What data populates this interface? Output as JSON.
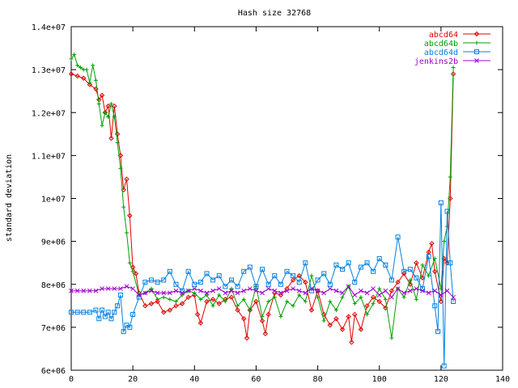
{
  "chart_data": {
    "type": "line",
    "title": "Hash size 32768",
    "xlabel": "",
    "ylabel": "standard deviation",
    "xlim": [
      0,
      140
    ],
    "ylim": [
      6000000,
      14000000
    ],
    "x_ticks": [
      0,
      20,
      40,
      60,
      80,
      100,
      120,
      140
    ],
    "x_tick_labels": [
      "0",
      "20",
      "40",
      "60",
      "80",
      "100",
      "120",
      "140"
    ],
    "y_ticks": [
      6000000,
      7000000,
      8000000,
      9000000,
      10000000,
      11000000,
      12000000,
      13000000,
      14000000
    ],
    "y_tick_labels": [
      "6e+06",
      "7e+06",
      "8e+06",
      "9e+06",
      "1e+07",
      "1.1e+07",
      "1.2e+07",
      "1.3e+07",
      "1.4e+07"
    ],
    "legend_position": "top-right",
    "grid": false,
    "series": [
      {
        "name": "abcd64",
        "color": "#e00000",
        "marker": "diamond",
        "points": [
          [
            0,
            12900000
          ],
          [
            2,
            12850000
          ],
          [
            4,
            12800000
          ],
          [
            6,
            12650000
          ],
          [
            8,
            12550000
          ],
          [
            9,
            12300000
          ],
          [
            10,
            12400000
          ],
          [
            11,
            12000000
          ],
          [
            12,
            12150000
          ],
          [
            13,
            11400000
          ],
          [
            14,
            12150000
          ],
          [
            15,
            11500000
          ],
          [
            16,
            11000000
          ],
          [
            17,
            10200000
          ],
          [
            18,
            10450000
          ],
          [
            19,
            9600000
          ],
          [
            20,
            8400000
          ],
          [
            21,
            8250000
          ],
          [
            22,
            7800000
          ],
          [
            24,
            7500000
          ],
          [
            26,
            7550000
          ],
          [
            28,
            7600000
          ],
          [
            30,
            7350000
          ],
          [
            32,
            7400000
          ],
          [
            34,
            7500000
          ],
          [
            36,
            7550000
          ],
          [
            38,
            7700000
          ],
          [
            40,
            7750000
          ],
          [
            41,
            7300000
          ],
          [
            42,
            7100000
          ],
          [
            44,
            7600000
          ],
          [
            46,
            7650000
          ],
          [
            48,
            7550000
          ],
          [
            50,
            7650000
          ],
          [
            52,
            7700000
          ],
          [
            54,
            7400000
          ],
          [
            56,
            7200000
          ],
          [
            57,
            6750000
          ],
          [
            58,
            7400000
          ],
          [
            60,
            7600000
          ],
          [
            62,
            7150000
          ],
          [
            63,
            6850000
          ],
          [
            64,
            7300000
          ],
          [
            66,
            7800000
          ],
          [
            68,
            7750000
          ],
          [
            70,
            7900000
          ],
          [
            72,
            8100000
          ],
          [
            74,
            8200000
          ],
          [
            76,
            8050000
          ],
          [
            78,
            7400000
          ],
          [
            80,
            7850000
          ],
          [
            82,
            7300000
          ],
          [
            84,
            7050000
          ],
          [
            86,
            7200000
          ],
          [
            88,
            6950000
          ],
          [
            90,
            7250000
          ],
          [
            91,
            6650000
          ],
          [
            92,
            7300000
          ],
          [
            94,
            6950000
          ],
          [
            96,
            7500000
          ],
          [
            98,
            7700000
          ],
          [
            100,
            7600000
          ],
          [
            102,
            7450000
          ],
          [
            104,
            7850000
          ],
          [
            106,
            8050000
          ],
          [
            108,
            8250000
          ],
          [
            110,
            8000000
          ],
          [
            112,
            8500000
          ],
          [
            114,
            8150000
          ],
          [
            116,
            8750000
          ],
          [
            117,
            8950000
          ],
          [
            118,
            8300000
          ],
          [
            120,
            7600000
          ],
          [
            121,
            8600000
          ],
          [
            122,
            8500000
          ],
          [
            123,
            10000000
          ],
          [
            124,
            12900000
          ]
        ]
      },
      {
        "name": "abcd64b",
        "color": "#00a000",
        "marker": "plus",
        "points": [
          [
            0,
            13250000
          ],
          [
            1,
            13350000
          ],
          [
            2,
            13100000
          ],
          [
            3,
            13050000
          ],
          [
            4,
            13000000
          ],
          [
            5,
            13000000
          ],
          [
            6,
            12700000
          ],
          [
            7,
            13100000
          ],
          [
            8,
            12750000
          ],
          [
            9,
            12200000
          ],
          [
            10,
            11700000
          ],
          [
            11,
            12000000
          ],
          [
            12,
            11900000
          ],
          [
            13,
            12200000
          ],
          [
            14,
            11900000
          ],
          [
            15,
            11300000
          ],
          [
            16,
            10700000
          ],
          [
            17,
            9800000
          ],
          [
            18,
            9200000
          ],
          [
            19,
            8500000
          ],
          [
            20,
            8300000
          ],
          [
            22,
            7750000
          ],
          [
            24,
            7800000
          ],
          [
            26,
            7900000
          ],
          [
            28,
            7650000
          ],
          [
            30,
            7700000
          ],
          [
            32,
            7650000
          ],
          [
            34,
            7600000
          ],
          [
            36,
            7750000
          ],
          [
            38,
            7850000
          ],
          [
            40,
            7800000
          ],
          [
            42,
            7650000
          ],
          [
            44,
            7750000
          ],
          [
            46,
            7500000
          ],
          [
            48,
            7750000
          ],
          [
            50,
            7600000
          ],
          [
            52,
            7900000
          ],
          [
            54,
            7500000
          ],
          [
            56,
            7650000
          ],
          [
            58,
            7400000
          ],
          [
            60,
            7950000
          ],
          [
            62,
            7250000
          ],
          [
            64,
            7600000
          ],
          [
            66,
            7700000
          ],
          [
            68,
            7250000
          ],
          [
            70,
            7600000
          ],
          [
            72,
            7500000
          ],
          [
            74,
            7750000
          ],
          [
            76,
            7600000
          ],
          [
            78,
            8200000
          ],
          [
            80,
            7700000
          ],
          [
            82,
            7150000
          ],
          [
            84,
            7600000
          ],
          [
            86,
            7400000
          ],
          [
            88,
            7700000
          ],
          [
            90,
            7950000
          ],
          [
            92,
            7550000
          ],
          [
            94,
            7700000
          ],
          [
            96,
            7300000
          ],
          [
            98,
            7550000
          ],
          [
            100,
            7900000
          ],
          [
            102,
            7650000
          ],
          [
            104,
            6750000
          ],
          [
            106,
            7900000
          ],
          [
            108,
            7700000
          ],
          [
            110,
            8100000
          ],
          [
            112,
            7650000
          ],
          [
            114,
            8450000
          ],
          [
            116,
            8200000
          ],
          [
            118,
            8600000
          ],
          [
            120,
            7900000
          ],
          [
            121,
            9000000
          ],
          [
            122,
            9350000
          ],
          [
            123,
            10500000
          ],
          [
            124,
            13050000
          ]
        ]
      },
      {
        "name": "abcd64d",
        "color": "#0080e0",
        "marker": "square",
        "points": [
          [
            0,
            7350000
          ],
          [
            2,
            7350000
          ],
          [
            4,
            7350000
          ],
          [
            6,
            7350000
          ],
          [
            8,
            7400000
          ],
          [
            9,
            7200000
          ],
          [
            10,
            7400000
          ],
          [
            11,
            7250000
          ],
          [
            12,
            7350000
          ],
          [
            13,
            7200000
          ],
          [
            14,
            7350000
          ],
          [
            15,
            7500000
          ],
          [
            16,
            7750000
          ],
          [
            17,
            6900000
          ],
          [
            18,
            7050000
          ],
          [
            19,
            7000000
          ],
          [
            20,
            7300000
          ],
          [
            22,
            7700000
          ],
          [
            24,
            8050000
          ],
          [
            26,
            8100000
          ],
          [
            28,
            8050000
          ],
          [
            30,
            8100000
          ],
          [
            32,
            8300000
          ],
          [
            34,
            8000000
          ],
          [
            36,
            7850000
          ],
          [
            38,
            8300000
          ],
          [
            40,
            8000000
          ],
          [
            42,
            8050000
          ],
          [
            44,
            8250000
          ],
          [
            46,
            8100000
          ],
          [
            48,
            8200000
          ],
          [
            50,
            7950000
          ],
          [
            52,
            8100000
          ],
          [
            54,
            7950000
          ],
          [
            56,
            8300000
          ],
          [
            58,
            8400000
          ],
          [
            60,
            7950000
          ],
          [
            62,
            8350000
          ],
          [
            64,
            8000000
          ],
          [
            66,
            8200000
          ],
          [
            68,
            8000000
          ],
          [
            70,
            8300000
          ],
          [
            72,
            8200000
          ],
          [
            74,
            8050000
          ],
          [
            76,
            8500000
          ],
          [
            78,
            7850000
          ],
          [
            80,
            8100000
          ],
          [
            82,
            8250000
          ],
          [
            84,
            8000000
          ],
          [
            86,
            8450000
          ],
          [
            88,
            8350000
          ],
          [
            90,
            8500000
          ],
          [
            92,
            8050000
          ],
          [
            94,
            8400000
          ],
          [
            96,
            8500000
          ],
          [
            98,
            8300000
          ],
          [
            100,
            8600000
          ],
          [
            102,
            8450000
          ],
          [
            104,
            8100000
          ],
          [
            106,
            9100000
          ],
          [
            108,
            8300000
          ],
          [
            110,
            8350000
          ],
          [
            112,
            8150000
          ],
          [
            114,
            7900000
          ],
          [
            116,
            8650000
          ],
          [
            118,
            7500000
          ],
          [
            119,
            6900000
          ],
          [
            120,
            9900000
          ],
          [
            121,
            6100000
          ],
          [
            122,
            9700000
          ],
          [
            123,
            8500000
          ],
          [
            124,
            7600000
          ]
        ]
      },
      {
        "name": "jenkins2b",
        "color": "#a000d0",
        "marker": "cross",
        "points": [
          [
            0,
            7850000
          ],
          [
            2,
            7850000
          ],
          [
            4,
            7850000
          ],
          [
            6,
            7850000
          ],
          [
            8,
            7850000
          ],
          [
            10,
            7900000
          ],
          [
            12,
            7900000
          ],
          [
            14,
            7900000
          ],
          [
            16,
            7900000
          ],
          [
            18,
            7950000
          ],
          [
            20,
            7900000
          ],
          [
            22,
            7750000
          ],
          [
            24,
            7800000
          ],
          [
            26,
            7850000
          ],
          [
            28,
            7800000
          ],
          [
            30,
            7800000
          ],
          [
            32,
            7800000
          ],
          [
            34,
            7850000
          ],
          [
            36,
            7800000
          ],
          [
            38,
            7850000
          ],
          [
            40,
            7900000
          ],
          [
            42,
            7850000
          ],
          [
            44,
            7800000
          ],
          [
            46,
            7850000
          ],
          [
            48,
            7900000
          ],
          [
            50,
            7800000
          ],
          [
            52,
            7850000
          ],
          [
            54,
            7800000
          ],
          [
            56,
            7850000
          ],
          [
            58,
            7900000
          ],
          [
            60,
            7850000
          ],
          [
            62,
            7800000
          ],
          [
            64,
            7900000
          ],
          [
            66,
            7850000
          ],
          [
            68,
            7800000
          ],
          [
            70,
            7850000
          ],
          [
            72,
            7900000
          ],
          [
            74,
            7850000
          ],
          [
            76,
            7800000
          ],
          [
            78,
            7900000
          ],
          [
            80,
            7850000
          ],
          [
            82,
            7800000
          ],
          [
            84,
            7900000
          ],
          [
            86,
            7850000
          ],
          [
            88,
            7800000
          ],
          [
            90,
            7950000
          ],
          [
            92,
            7750000
          ],
          [
            94,
            7850000
          ],
          [
            96,
            7800000
          ],
          [
            98,
            7900000
          ],
          [
            100,
            7750000
          ],
          [
            102,
            7850000
          ],
          [
            104,
            7700000
          ],
          [
            106,
            7900000
          ],
          [
            108,
            7800000
          ],
          [
            110,
            7850000
          ],
          [
            112,
            7900000
          ],
          [
            114,
            7850000
          ],
          [
            116,
            7800000
          ],
          [
            118,
            7850000
          ],
          [
            120,
            7750000
          ],
          [
            122,
            7850000
          ],
          [
            124,
            7700000
          ]
        ]
      }
    ]
  }
}
